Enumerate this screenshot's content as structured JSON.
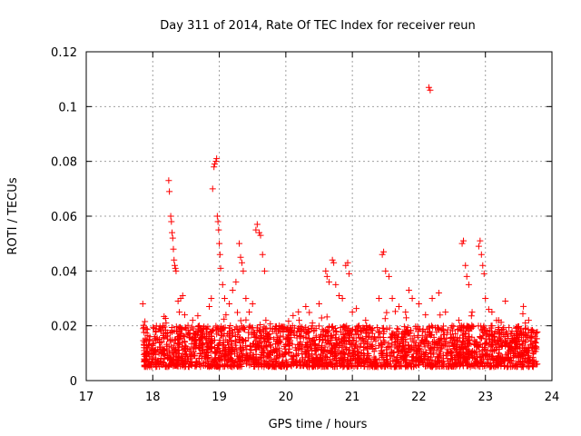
{
  "chart_data": {
    "type": "scatter",
    "title": "Day 311 of 2014, Rate Of TEC Index for receiver reun",
    "xlabel": "GPS time / hours",
    "ylabel": "ROTI / TECUs",
    "xlim": [
      17,
      24
    ],
    "ylim": [
      0,
      0.12
    ],
    "xticks": [
      "17",
      "18",
      "19",
      "20",
      "21",
      "22",
      "23",
      "24"
    ],
    "yticks": [
      "0",
      "0.02",
      "0.04",
      "0.06",
      "0.08",
      "0.1",
      "0.12"
    ],
    "grid": true,
    "marker": "+",
    "color": "#ff0000",
    "series": [
      {
        "name": "ROTI",
        "points": [
          [
            17.85,
            0.028
          ],
          [
            17.87,
            0.012
          ],
          [
            17.9,
            0.009
          ],
          [
            17.95,
            0.015
          ],
          [
            18.0,
            0.011
          ],
          [
            18.05,
            0.018
          ],
          [
            18.1,
            0.014
          ],
          [
            18.15,
            0.02
          ],
          [
            18.2,
            0.021
          ],
          [
            18.22,
            0.016
          ],
          [
            18.24,
            0.073
          ],
          [
            18.25,
            0.069
          ],
          [
            18.27,
            0.06
          ],
          [
            18.28,
            0.058
          ],
          [
            18.29,
            0.054
          ],
          [
            18.3,
            0.052
          ],
          [
            18.31,
            0.048
          ],
          [
            18.32,
            0.044
          ],
          [
            18.33,
            0.042
          ],
          [
            18.34,
            0.041
          ],
          [
            18.35,
            0.04
          ],
          [
            18.38,
            0.029
          ],
          [
            18.4,
            0.025
          ],
          [
            18.42,
            0.03
          ],
          [
            18.45,
            0.031
          ],
          [
            18.48,
            0.024
          ],
          [
            18.5,
            0.019
          ],
          [
            18.55,
            0.017
          ],
          [
            18.6,
            0.022
          ],
          [
            18.65,
            0.018
          ],
          [
            18.7,
            0.02
          ],
          [
            18.75,
            0.016
          ],
          [
            18.8,
            0.019
          ],
          [
            18.85,
            0.027
          ],
          [
            18.88,
            0.03
          ],
          [
            18.9,
            0.07
          ],
          [
            18.92,
            0.078
          ],
          [
            18.93,
            0.079
          ],
          [
            18.95,
            0.08
          ],
          [
            18.96,
            0.081
          ],
          [
            18.97,
            0.06
          ],
          [
            18.98,
            0.058
          ],
          [
            18.99,
            0.055
          ],
          [
            19.0,
            0.05
          ],
          [
            19.01,
            0.046
          ],
          [
            19.02,
            0.041
          ],
          [
            19.05,
            0.035
          ],
          [
            19.08,
            0.03
          ],
          [
            19.1,
            0.024
          ],
          [
            19.15,
            0.028
          ],
          [
            19.2,
            0.033
          ],
          [
            19.25,
            0.036
          ],
          [
            19.3,
            0.05
          ],
          [
            19.32,
            0.045
          ],
          [
            19.34,
            0.043
          ],
          [
            19.36,
            0.04
          ],
          [
            19.4,
            0.03
          ],
          [
            19.45,
            0.025
          ],
          [
            19.5,
            0.028
          ],
          [
            19.55,
            0.055
          ],
          [
            19.57,
            0.057
          ],
          [
            19.6,
            0.054
          ],
          [
            19.62,
            0.053
          ],
          [
            19.65,
            0.046
          ],
          [
            19.68,
            0.04
          ],
          [
            19.7,
            0.022
          ],
          [
            19.8,
            0.018
          ],
          [
            19.9,
            0.02
          ],
          [
            20.0,
            0.015
          ],
          [
            20.1,
            0.02
          ],
          [
            20.2,
            0.022
          ],
          [
            20.3,
            0.027
          ],
          [
            20.4,
            0.021
          ],
          [
            20.5,
            0.028
          ],
          [
            20.6,
            0.04
          ],
          [
            20.62,
            0.038
          ],
          [
            20.65,
            0.036
          ],
          [
            20.7,
            0.044
          ],
          [
            20.72,
            0.043
          ],
          [
            20.75,
            0.035
          ],
          [
            20.8,
            0.031
          ],
          [
            20.85,
            0.03
          ],
          [
            20.9,
            0.042
          ],
          [
            20.93,
            0.043
          ],
          [
            20.95,
            0.039
          ],
          [
            21.0,
            0.025
          ],
          [
            21.1,
            0.02
          ],
          [
            21.2,
            0.022
          ],
          [
            21.3,
            0.019
          ],
          [
            21.4,
            0.03
          ],
          [
            21.45,
            0.046
          ],
          [
            21.47,
            0.047
          ],
          [
            21.5,
            0.04
          ],
          [
            21.55,
            0.038
          ],
          [
            21.6,
            0.03
          ],
          [
            21.7,
            0.027
          ],
          [
            21.8,
            0.025
          ],
          [
            21.85,
            0.033
          ],
          [
            21.9,
            0.03
          ],
          [
            22.0,
            0.028
          ],
          [
            22.1,
            0.024
          ],
          [
            22.15,
            0.107
          ],
          [
            22.17,
            0.106
          ],
          [
            22.2,
            0.03
          ],
          [
            22.3,
            0.032
          ],
          [
            22.4,
            0.025
          ],
          [
            22.5,
            0.02
          ],
          [
            22.6,
            0.022
          ],
          [
            22.65,
            0.05
          ],
          [
            22.67,
            0.051
          ],
          [
            22.7,
            0.042
          ],
          [
            22.72,
            0.038
          ],
          [
            22.75,
            0.035
          ],
          [
            22.8,
            0.025
          ],
          [
            22.9,
            0.049
          ],
          [
            22.92,
            0.051
          ],
          [
            22.94,
            0.046
          ],
          [
            22.96,
            0.042
          ],
          [
            22.98,
            0.039
          ],
          [
            23.0,
            0.03
          ],
          [
            23.05,
            0.026
          ],
          [
            23.1,
            0.02
          ],
          [
            23.2,
            0.022
          ],
          [
            23.3,
            0.029
          ],
          [
            23.4,
            0.018
          ],
          [
            23.5,
            0.015
          ],
          [
            23.6,
            0.021
          ],
          [
            23.65,
            0.022
          ],
          [
            23.7,
            0.016
          ],
          [
            23.75,
            0.014
          ]
        ]
      }
    ],
    "dense_band": {
      "description_note": "",
      "x_range": [
        17.85,
        23.78
      ],
      "y_range": [
        0.005,
        0.02
      ],
      "count": 2600
    }
  }
}
